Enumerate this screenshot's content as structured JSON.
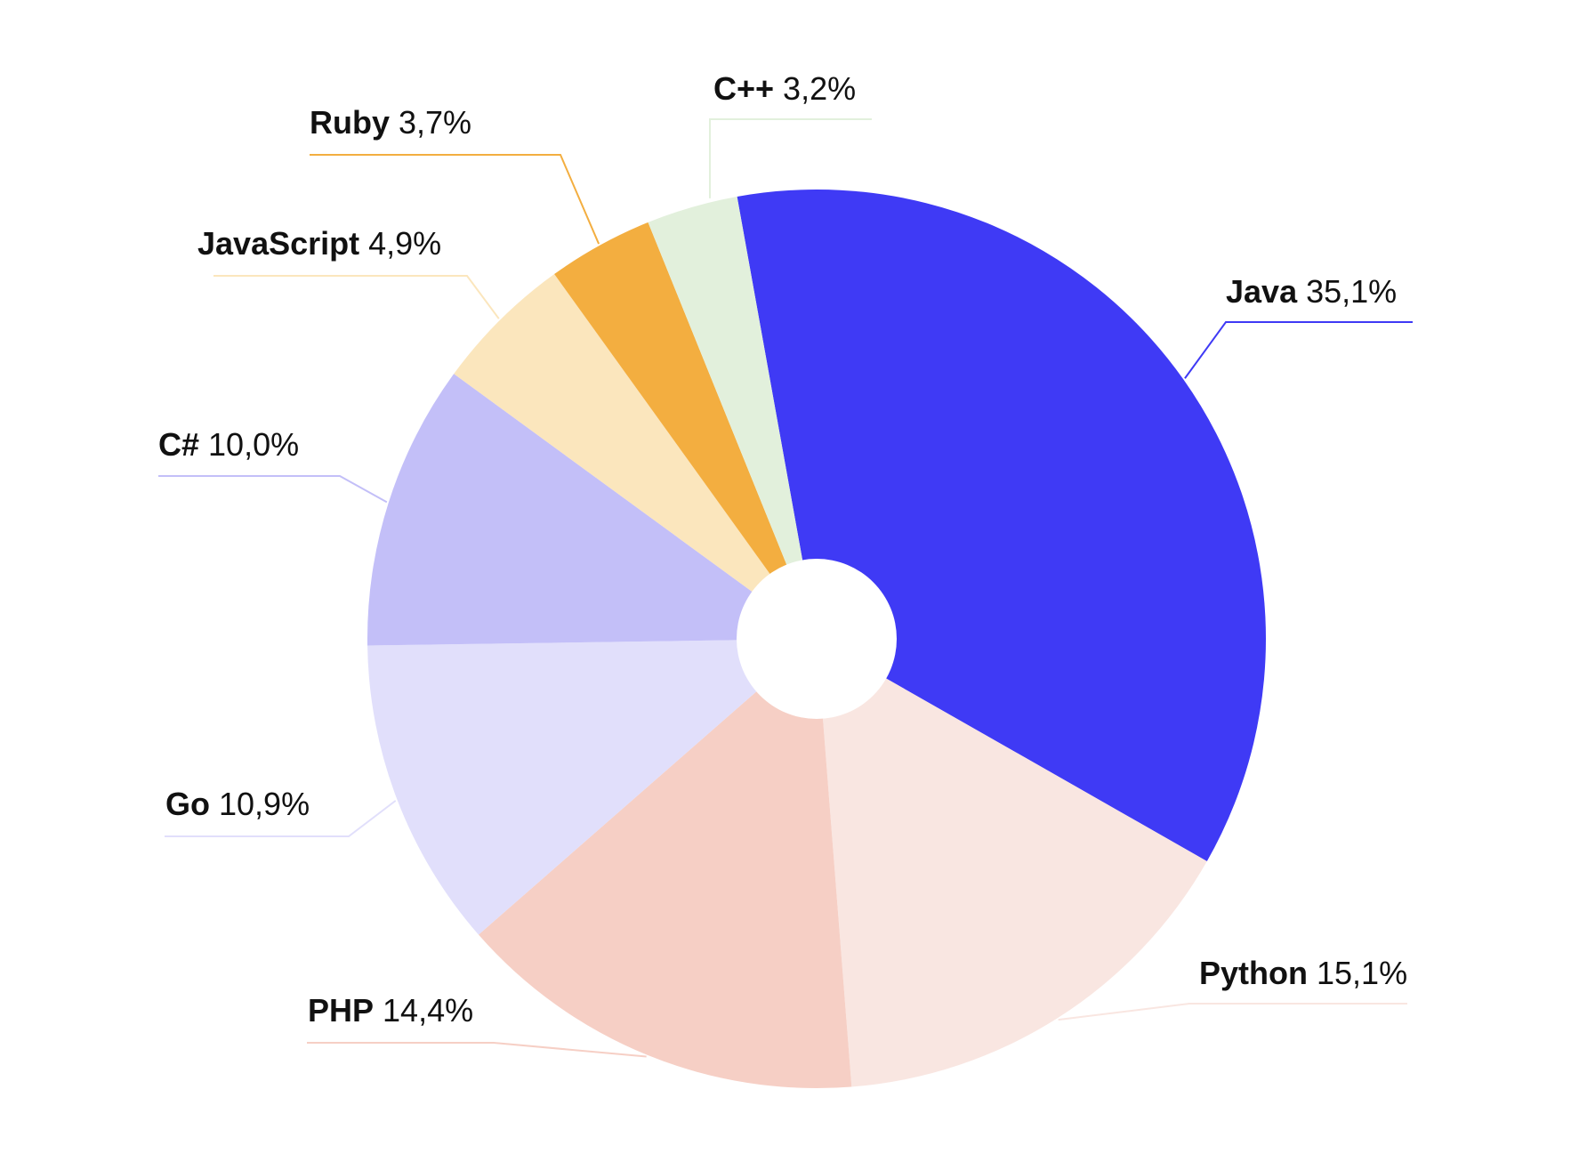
{
  "chart_data": {
    "type": "pie",
    "title": "",
    "donut_hole": true,
    "legend": "none",
    "slices": [
      {
        "name": "Java",
        "value": 35.1,
        "value_label": "35,1%",
        "color": "#3f3af5"
      },
      {
        "name": "Python",
        "value": 15.1,
        "value_label": "15,1%",
        "color": "#f9e6e1"
      },
      {
        "name": "PHP",
        "value": 14.4,
        "value_label": "14,4%",
        "color": "#f6cfc5"
      },
      {
        "name": "Go",
        "value": 10.9,
        "value_label": "10,9%",
        "color": "#e1dffb"
      },
      {
        "name": "C#",
        "value": 10.0,
        "value_label": "10,0%",
        "color": "#c3bff8"
      },
      {
        "name": "JavaScript",
        "value": 4.9,
        "value_label": "4,9%",
        "color": "#fbe6bd"
      },
      {
        "name": "Ruby",
        "value": 3.7,
        "value_label": "3,7%",
        "color": "#f3ae40"
      },
      {
        "name": "C++",
        "value": 3.2,
        "value_label": "3,2%",
        "color": "#e2f0dc"
      }
    ]
  }
}
